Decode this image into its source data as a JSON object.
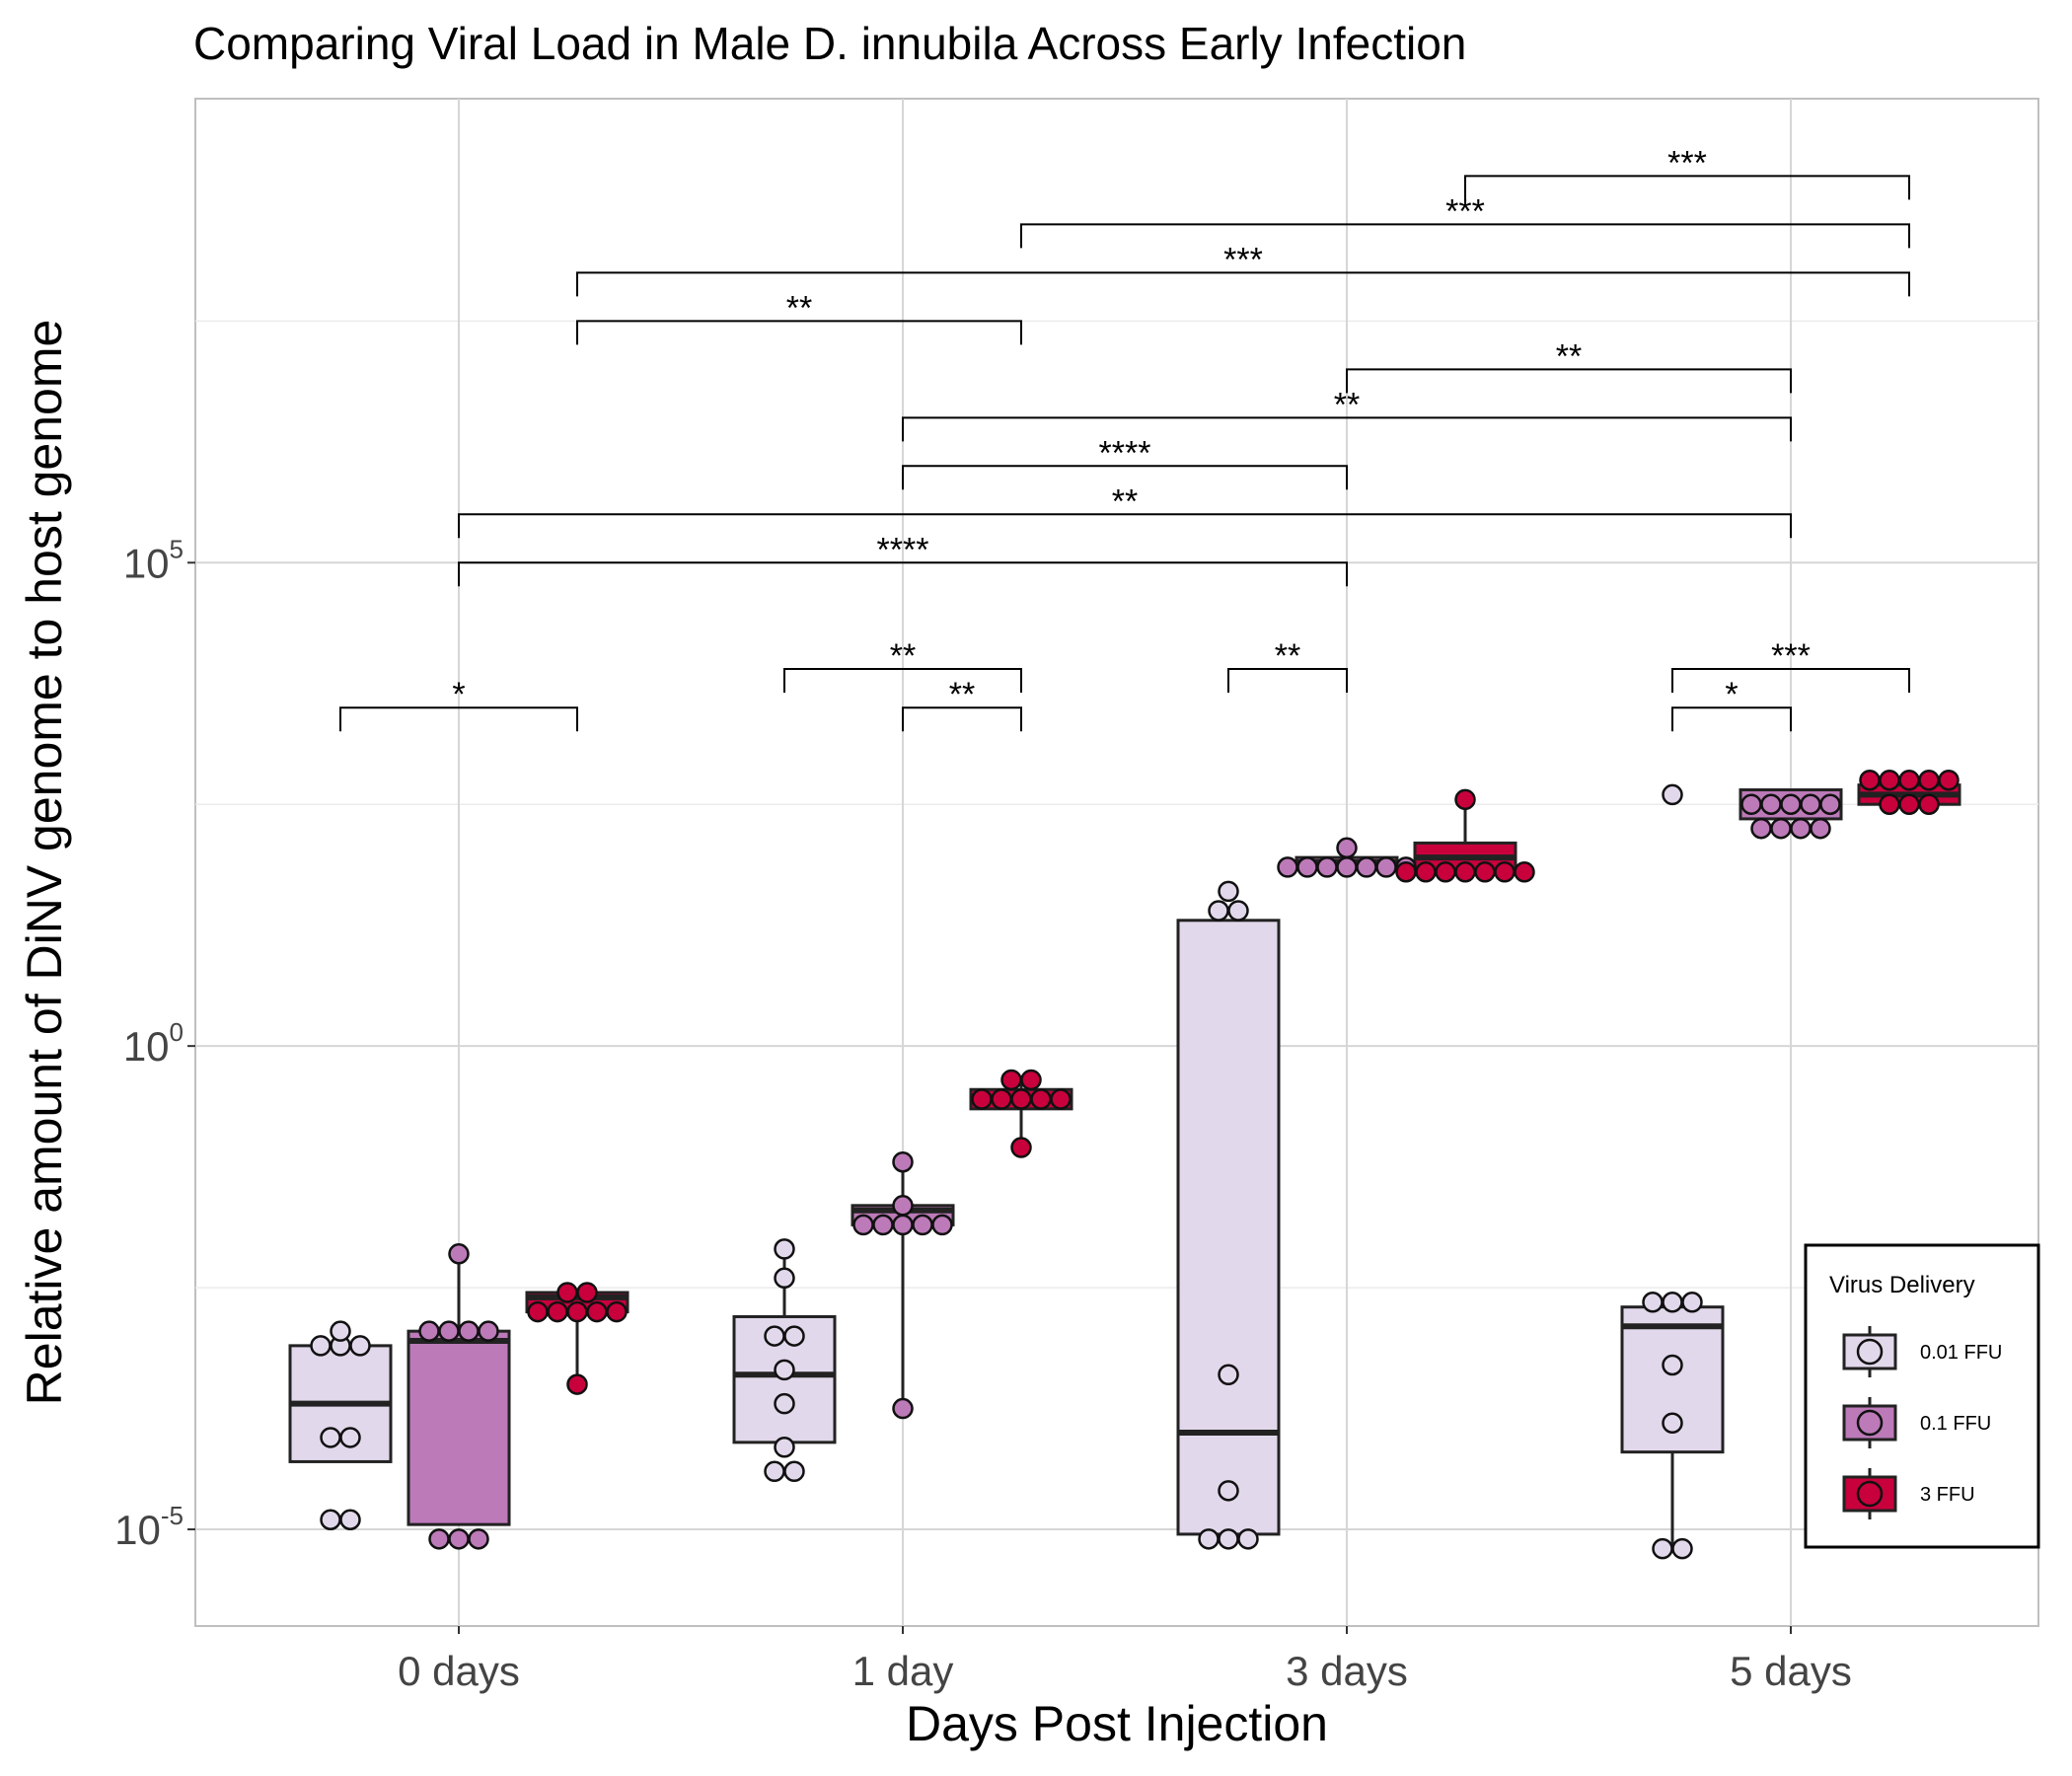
{
  "chart_data": {
    "type": "box",
    "title": "Comparing Viral Load in Male D. innubila Across Early Infection",
    "xlabel": "Days Post Injection",
    "ylabel": "Relative amount of DiNV genome to host genome",
    "yscale": "log10",
    "ylim_log10": [
      -6,
      9.8
    ],
    "yticks": [
      {
        "exp": -5,
        "base": "10",
        "sup": "-5"
      },
      {
        "exp": 0,
        "base": "10",
        "sup": "0"
      },
      {
        "exp": 5,
        "base": "10",
        "sup": "5"
      }
    ],
    "categories": [
      "0 days",
      "1 day",
      "3 days",
      "5 days"
    ],
    "grid": true,
    "legend": {
      "title": "Virus Delivery",
      "position": "bottom-right",
      "entries": [
        {
          "label": "0.01 FFU",
          "color": "#e2d8eb"
        },
        {
          "label": "0.1 FFU",
          "color": "#bc7ab8"
        },
        {
          "label": "3 FFU",
          "color": "#c8003c"
        }
      ]
    },
    "series": [
      {
        "name": "0.01 FFU",
        "color": "#e2d8eb",
        "boxes": [
          {
            "q1": -4.3,
            "median": -3.7,
            "q3": -3.1,
            "whisker_low": -4.3,
            "whisker_high": -3.1,
            "points": [
              -4.9,
              -4.9,
              -4.05,
              -4.05,
              -3.1,
              -3.1,
              -3.1,
              -2.95
            ]
          },
          {
            "q1": -4.1,
            "median": -3.4,
            "q3": -2.8,
            "whisker_low": -4.1,
            "whisker_high": -2.1,
            "points": [
              -4.4,
              -4.4,
              -4.15,
              -3.7,
              -3.35,
              -3.0,
              -3.0,
              -2.4,
              -2.1
            ]
          },
          {
            "q1": -5.05,
            "median": -4.0,
            "q3": 1.3,
            "whisker_low": -5.05,
            "whisker_high": 1.3,
            "points": [
              -5.1,
              -5.1,
              -5.1,
              -4.6,
              -3.4,
              1.4,
              1.4,
              1.6
            ]
          },
          {
            "q1": -4.2,
            "median": -2.9,
            "q3": -2.7,
            "whisker_low": -5.2,
            "whisker_high": -2.7,
            "points": [
              -5.2,
              -5.2,
              -3.9,
              -3.3,
              -2.65,
              -2.65,
              -2.65,
              2.6
            ]
          }
        ]
      },
      {
        "name": "0.1 FFU",
        "color": "#bc7ab8",
        "boxes": [
          {
            "q1": -4.95,
            "median": -3.05,
            "q3": -2.95,
            "whisker_low": -4.95,
            "whisker_high": -2.15,
            "points": [
              -5.1,
              -5.1,
              -5.1,
              -2.95,
              -2.95,
              -2.95,
              -2.95,
              -2.15
            ]
          },
          {
            "q1": -1.85,
            "median": -1.7,
            "q3": -1.65,
            "whisker_low": -3.75,
            "whisker_high": -1.2,
            "points": [
              -3.75,
              -1.85,
              -1.85,
              -1.85,
              -1.85,
              -1.85,
              -1.65,
              -1.2
            ]
          },
          {
            "q1": 1.85,
            "median": 1.9,
            "q3": 1.95,
            "whisker_low": 1.85,
            "whisker_high": 2.05,
            "points": [
              1.85,
              1.85,
              1.85,
              1.85,
              1.85,
              1.85,
              1.85,
              2.05
            ]
          },
          {
            "q1": 2.35,
            "median": 2.5,
            "q3": 2.65,
            "whisker_low": 2.35,
            "whisker_high": 2.65,
            "points": [
              2.25,
              2.25,
              2.25,
              2.25,
              2.5,
              2.5,
              2.5,
              2.5,
              2.5
            ]
          }
        ]
      },
      {
        "name": "3 FFU",
        "color": "#c8003c",
        "boxes": [
          {
            "q1": -2.75,
            "median": -2.6,
            "q3": -2.55,
            "whisker_low": -3.5,
            "whisker_high": -2.55,
            "points": [
              -3.5,
              -2.75,
              -2.75,
              -2.75,
              -2.75,
              -2.75,
              -2.55,
              -2.55
            ]
          },
          {
            "q1": -0.65,
            "median": -0.55,
            "q3": -0.45,
            "whisker_low": -1.05,
            "whisker_high": -0.35,
            "points": [
              -1.05,
              -0.55,
              -0.55,
              -0.55,
              -0.55,
              -0.55,
              -0.35,
              -0.35
            ]
          },
          {
            "q1": 1.8,
            "median": 1.95,
            "q3": 2.1,
            "whisker_low": 1.8,
            "whisker_high": 2.55,
            "points": [
              1.8,
              1.8,
              1.8,
              1.8,
              1.8,
              1.8,
              1.8,
              2.55
            ]
          },
          {
            "q1": 2.5,
            "median": 2.6,
            "q3": 2.7,
            "whisker_low": 2.5,
            "whisker_high": 2.7,
            "points": [
              2.5,
              2.5,
              2.5,
              2.75,
              2.75,
              2.75,
              2.75,
              2.75
            ]
          }
        ]
      }
    ],
    "significance": [
      {
        "from": [
          0,
          0
        ],
        "to": [
          0,
          2
        ],
        "y": 3.5,
        "label": "*"
      },
      {
        "from": [
          1,
          0
        ],
        "to": [
          1,
          2
        ],
        "y": 3.9,
        "label": "**"
      },
      {
        "from": [
          1,
          1
        ],
        "to": [
          1,
          2
        ],
        "y": 3.5,
        "label": "**"
      },
      {
        "from": [
          2,
          0
        ],
        "to": [
          2,
          1
        ],
        "y": 3.9,
        "label": "**"
      },
      {
        "from": [
          3,
          0
        ],
        "to": [
          3,
          2
        ],
        "y": 3.9,
        "label": "***"
      },
      {
        "from": [
          3,
          0
        ],
        "to": [
          3,
          1
        ],
        "y": 3.5,
        "label": "*"
      },
      {
        "from": [
          0,
          1
        ],
        "to": [
          2,
          1
        ],
        "y": 5.0,
        "label": "****"
      },
      {
        "from": [
          0,
          1
        ],
        "to": [
          3,
          1
        ],
        "y": 5.5,
        "label": "**"
      },
      {
        "from": [
          1,
          1
        ],
        "to": [
          2,
          1
        ],
        "y": 6.0,
        "label": "****"
      },
      {
        "from": [
          1,
          1
        ],
        "to": [
          3,
          1
        ],
        "y": 6.5,
        "label": "**"
      },
      {
        "from": [
          2,
          1
        ],
        "to": [
          3,
          1
        ],
        "y": 7.0,
        "label": "**"
      },
      {
        "from": [
          0,
          2
        ],
        "to": [
          1,
          2
        ],
        "y": 7.5,
        "label": "**"
      },
      {
        "from": [
          0,
          2
        ],
        "to": [
          3,
          2
        ],
        "y": 8.0,
        "label": "***"
      },
      {
        "from": [
          1,
          2
        ],
        "to": [
          3,
          2
        ],
        "y": 8.5,
        "label": "***"
      },
      {
        "from": [
          2,
          2
        ],
        "to": [
          3,
          2
        ],
        "y": 9.0,
        "label": "***"
      }
    ]
  }
}
